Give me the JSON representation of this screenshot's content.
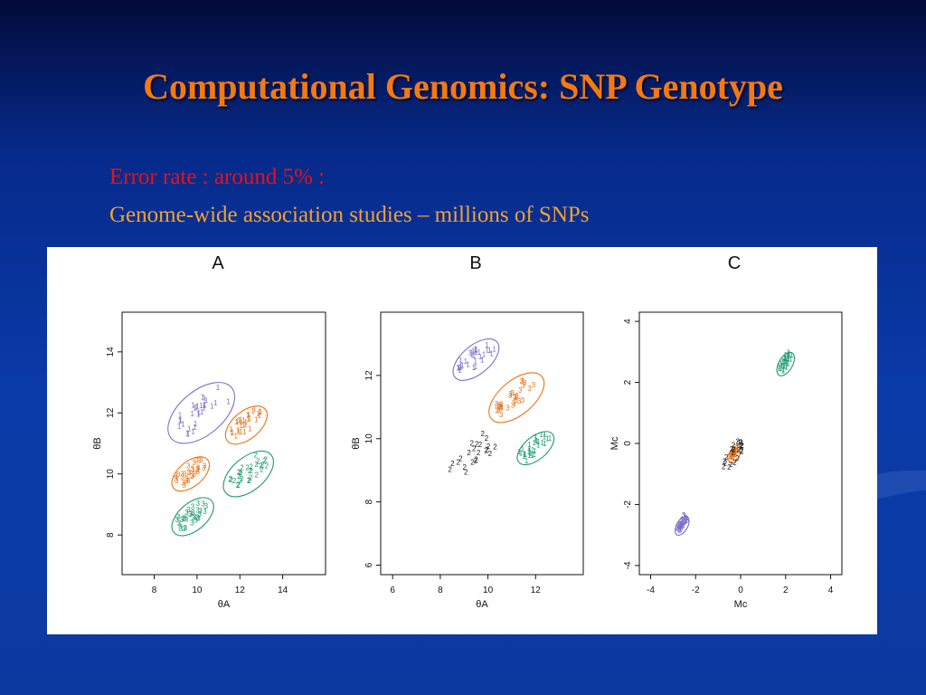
{
  "title": "Computational Genomics: SNP Genotype",
  "text_lines": [
    "Error rate :  around 5% :",
    "Genome-wide association studies – millions of SNPs"
  ],
  "colors": {
    "title": "#f47a10",
    "line1": "#e8101a",
    "line2": "#f4a030",
    "cluster_1": "#7a6ec8",
    "cluster_2": "#e8741a",
    "cluster_3": "#1e9a6e",
    "points_dark": "#222222"
  },
  "chart_data": [
    {
      "type": "scatter",
      "panel": "A",
      "xlabel": "θA",
      "ylabel": "θB",
      "xlim": [
        6.5,
        16
      ],
      "ylim": [
        6.7,
        15.3
      ],
      "xticks": [
        "8",
        "10",
        "12",
        "14"
      ],
      "yticks": [
        "8",
        "10",
        "12",
        "14"
      ],
      "clusters": [
        {
          "label": "1",
          "color": "#7a6ec8",
          "center": [
            10.2,
            12.0
          ],
          "spread": 1.6
        },
        {
          "label": "3",
          "color": "#e8741a",
          "center": [
            9.7,
            10.0
          ],
          "spread": 0.9
        },
        {
          "label": "3",
          "color": "#1e9a6e",
          "center": [
            9.8,
            8.6
          ],
          "spread": 1.0
        },
        {
          "label": "1",
          "color": "#e8741a",
          "center": [
            12.3,
            11.6
          ],
          "spread": 1.0
        },
        {
          "label": "2",
          "color": "#1e9a6e",
          "center": [
            12.4,
            10.0
          ],
          "spread": 1.2
        }
      ]
    },
    {
      "type": "scatter",
      "panel": "B",
      "xlabel": "θA",
      "ylabel": "θB",
      "xlim": [
        5.5,
        14
      ],
      "ylim": [
        5.7,
        14
      ],
      "xticks": [
        "6",
        "8",
        "10",
        "12"
      ],
      "yticks": [
        "6",
        "8",
        "10",
        "12"
      ],
      "clusters": [
        {
          "label": "1",
          "color": "#7a6ec8",
          "center": [
            9.5,
            12.5
          ],
          "spread": 1.0
        },
        {
          "label": "3",
          "color": "#e8741a",
          "center": [
            11.2,
            11.3
          ],
          "spread": 1.2
        },
        {
          "label": "1",
          "color": "#1e9a6e",
          "center": [
            12.0,
            9.7
          ],
          "spread": 0.8
        },
        {
          "label": "2",
          "color": "#222222",
          "center": [
            9.2,
            9.3
          ],
          "spread": 1.4
        }
      ]
    },
    {
      "type": "scatter",
      "panel": "C",
      "xlabel": "Mc",
      "ylabel": "Mc",
      "xlim": [
        -4.5,
        4.5
      ],
      "ylim": [
        -4.3,
        4.3
      ],
      "xticks": [
        "-4",
        "-2",
        "0",
        "2",
        "4"
      ],
      "yticks": [
        "-4",
        "-2",
        "0",
        "2",
        "4"
      ],
      "clusters": [
        {
          "label": "3",
          "color": "#7a6ec8",
          "center": [
            -2.6,
            -2.7
          ],
          "spread": 0.4
        },
        {
          "label": "2",
          "color": "#e8741a",
          "center": [
            -0.3,
            -0.4
          ],
          "spread": 0.3
        },
        {
          "label": "2",
          "color": "#222222",
          "center": [
            -0.3,
            -0.4
          ],
          "spread": 0.9
        },
        {
          "label": "1",
          "color": "#1e9a6e",
          "center": [
            2.0,
            2.6
          ],
          "spread": 0.5
        }
      ]
    }
  ]
}
